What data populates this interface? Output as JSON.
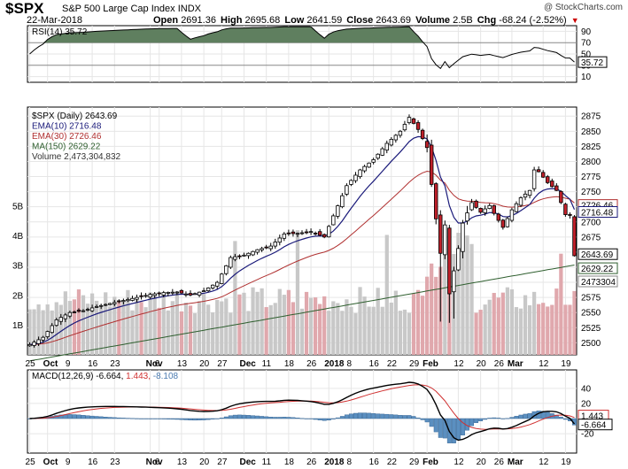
{
  "header": {
    "symbol": "$SPX",
    "name": "S&P 500 Large Cap Index",
    "exchange": "INDX",
    "source": "@ StockCharts.com",
    "date": "22-Mar-2018",
    "open_label": "Open",
    "open": "2691.36",
    "high_label": "High",
    "high": "2695.68",
    "low_label": "Low",
    "low": "2641.59",
    "close_label": "Close",
    "close": "2643.69",
    "volume_label": "Volume",
    "volume": "2.5B",
    "chg_label": "Chg",
    "chg": "-68.24 (-2.52%)",
    "chg_icon": "down-triangle-icon"
  },
  "rsi_panel": {
    "legend": "RSI(14) 35.72",
    "value_badge": "35.72",
    "ticks": [
      "90",
      "70",
      "50",
      "30",
      "10"
    ],
    "tick_values": [
      90,
      70,
      50,
      30,
      10
    ],
    "overbought": 70,
    "oversold": 30,
    "fill_color": "#5f7f5f"
  },
  "price_panel": {
    "legend": [
      {
        "text": "$SPX (Daily) 2643.69",
        "color": "#000000"
      },
      {
        "text": "EMA(10) 2716.48",
        "color": "#1a1a7a"
      },
      {
        "text": "EMA(30) 2726.46",
        "color": "#b03030"
      },
      {
        "text": "MA(150) 2629.22",
        "color": "#2f5f2f"
      },
      {
        "text": "Volume 2,473,304,832",
        "color": "#333333"
      }
    ],
    "price_ticks": [
      "2875",
      "2850",
      "2825",
      "2800",
      "2775",
      "2750",
      "2725",
      "2700",
      "2675",
      "2650",
      "2625",
      "2600",
      "2575",
      "2550",
      "2525",
      "2500"
    ],
    "price_tick_values": [
      2875,
      2850,
      2825,
      2800,
      2775,
      2750,
      2725,
      2700,
      2675,
      2650,
      2625,
      2600,
      2575,
      2550,
      2525,
      2500
    ],
    "volume_ticks": [
      "5B",
      "4B",
      "3B",
      "2B",
      "1B"
    ],
    "volume_tick_values": [
      5,
      4,
      3,
      2,
      1
    ],
    "badges": {
      "ema30": "2726.46",
      "ema10": "2716.48",
      "close": "2643.69",
      "ma150": "2629.22",
      "volume": "2473304"
    },
    "up_color": "#ffffff",
    "down_color": "#c0202a"
  },
  "macd_panel": {
    "legend_prefix": "MACD(12,26,9)",
    "macd": "-6.664",
    "signal": "1.443",
    "hist": "-8.108",
    "ticks": [
      "40",
      "20",
      "0",
      "-20"
    ],
    "tick_values": [
      40,
      20,
      0,
      -20
    ],
    "badge_signal": "1.443",
    "badge_macd": "-6.664",
    "hist_color": "#5b8fc0",
    "signal_color": "#d03030",
    "macd_color": "#000000"
  },
  "x_axis": {
    "labels": [
      {
        "text": "25",
        "i": 0,
        "bold": false
      },
      {
        "text": "Oct",
        "i": 4,
        "bold": true
      },
      {
        "text": "9",
        "i": 9,
        "bold": false
      },
      {
        "text": "16",
        "i": 14,
        "bold": false
      },
      {
        "text": "23",
        "i": 19,
        "bold": false
      },
      {
        "text": "Nov",
        "i": 27,
        "bold": true
      },
      {
        "text": "6",
        "i": 29,
        "bold": false
      },
      {
        "text": "13",
        "i": 34,
        "bold": false
      },
      {
        "text": "20",
        "i": 39,
        "bold": false
      },
      {
        "text": "27",
        "i": 43,
        "bold": false
      },
      {
        "text": "Dec",
        "i": 48,
        "bold": true
      },
      {
        "text": "11",
        "i": 53,
        "bold": false
      },
      {
        "text": "18",
        "i": 58,
        "bold": false
      },
      {
        "text": "26",
        "i": 63,
        "bold": false
      },
      {
        "text": "2018",
        "i": 67,
        "bold": true
      },
      {
        "text": "8",
        "i": 72,
        "bold": false
      },
      {
        "text": "16",
        "i": 77,
        "bold": false
      },
      {
        "text": "22",
        "i": 81,
        "bold": false
      },
      {
        "text": "29",
        "i": 86,
        "bold": false
      },
      {
        "text": "Feb",
        "i": 89,
        "bold": true
      },
      {
        "text": "12",
        "i": 96,
        "bold": false
      },
      {
        "text": "20",
        "i": 101,
        "bold": false
      },
      {
        "text": "26",
        "i": 105,
        "bold": false
      },
      {
        "text": "Mar",
        "i": 108,
        "bold": true
      },
      {
        "text": "12",
        "i": 115,
        "bold": false
      },
      {
        "text": "19",
        "i": 120,
        "bold": false
      }
    ]
  },
  "chart_data": {
    "type": "candlestick",
    "title": "$SPX S&P 500 Large Cap Index INDX",
    "ylim": [
      2480,
      2890
    ],
    "x": [
      "2017-09-25",
      "2018-03-22"
    ],
    "ohlc_anchors_close": [
      [
        0,
        2497
      ],
      [
        3,
        2509
      ],
      [
        6,
        2538
      ],
      [
        9,
        2550
      ],
      [
        12,
        2553
      ],
      [
        15,
        2560
      ],
      [
        18,
        2565
      ],
      [
        21,
        2570
      ],
      [
        24,
        2575
      ],
      [
        27,
        2580
      ],
      [
        30,
        2583
      ],
      [
        33,
        2584
      ],
      [
        36,
        2579
      ],
      [
        39,
        2586
      ],
      [
        42,
        2600
      ],
      [
        45,
        2641
      ],
      [
        48,
        2645
      ],
      [
        51,
        2654
      ],
      [
        54,
        2660
      ],
      [
        57,
        2680
      ],
      [
        60,
        2681
      ],
      [
        63,
        2684
      ],
      [
        66,
        2675
      ],
      [
        68,
        2710
      ],
      [
        71,
        2760
      ],
      [
        74,
        2786
      ],
      [
        77,
        2803
      ],
      [
        80,
        2830
      ],
      [
        83,
        2850
      ],
      [
        85,
        2873
      ],
      [
        87,
        2853
      ],
      [
        89,
        2823
      ],
      [
        90,
        2762
      ],
      [
        92,
        2648
      ],
      [
        93,
        2695
      ],
      [
        94,
        2581
      ],
      [
        95,
        2619
      ],
      [
        96,
        2656
      ],
      [
        97,
        2698
      ],
      [
        99,
        2732
      ],
      [
        101,
        2716
      ],
      [
        103,
        2727
      ],
      [
        104,
        2714
      ],
      [
        106,
        2691
      ],
      [
        108,
        2720
      ],
      [
        110,
        2740
      ],
      [
        112,
        2752
      ],
      [
        113,
        2786
      ],
      [
        114,
        2783
      ],
      [
        116,
        2765
      ],
      [
        118,
        2752
      ],
      [
        120,
        2712
      ],
      [
        121,
        2711
      ],
      [
        122,
        2644
      ]
    ],
    "series": [
      {
        "name": "$SPX (Daily)",
        "last": 2643.69
      },
      {
        "name": "EMA(10)",
        "last": 2716.48
      },
      {
        "name": "EMA(30)",
        "last": 2726.46
      },
      {
        "name": "MA(150)",
        "last": 2629.22
      },
      {
        "name": "Volume",
        "last": 2473304832
      },
      {
        "name": "RSI(14)",
        "last": 35.72
      },
      {
        "name": "MACD(12,26,9)",
        "last": -6.664
      },
      {
        "name": "Signal",
        "last": 1.443
      },
      {
        "name": "Histogram",
        "last": -8.108
      }
    ]
  }
}
